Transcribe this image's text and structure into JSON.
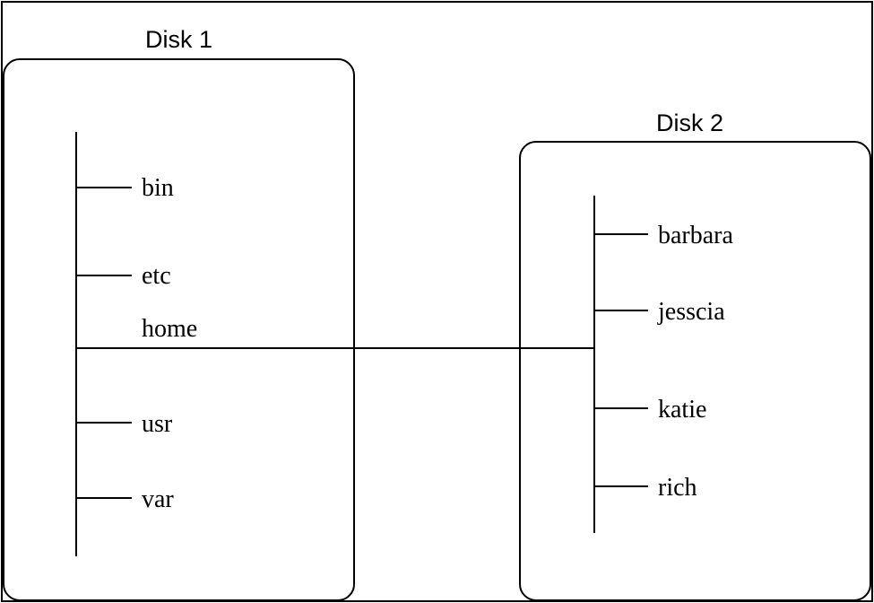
{
  "disk1": {
    "label": "Disk 1",
    "directories": [
      "bin",
      "etc",
      "home",
      "usr",
      "var"
    ]
  },
  "disk2": {
    "label": "Disk 2",
    "directories": [
      "barbara",
      "jesscia",
      "katie",
      "rich"
    ]
  }
}
